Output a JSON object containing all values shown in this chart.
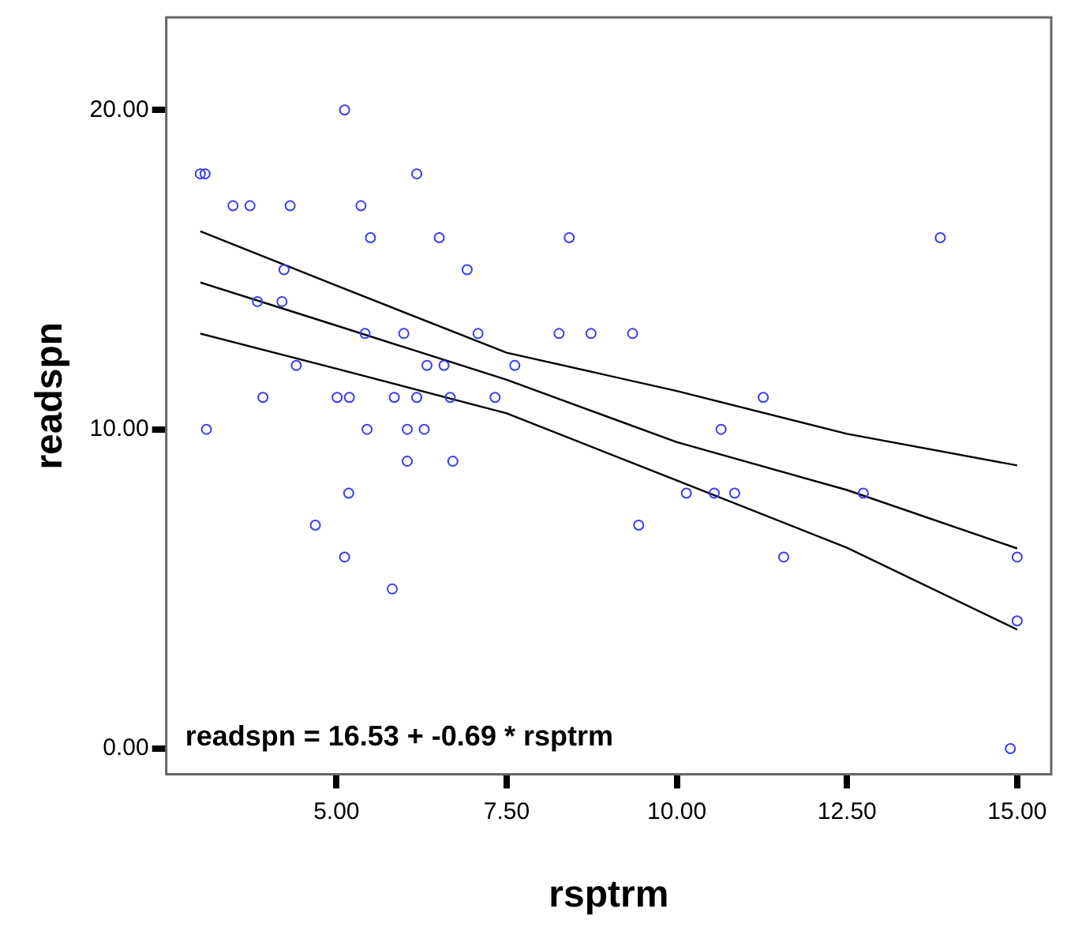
{
  "chart_data": {
    "type": "scatter",
    "xlabel": "rsptrm",
    "ylabel": "readspn",
    "xlim": [
      2.5,
      15.5
    ],
    "ylim": [
      -0.8,
      22.9
    ],
    "xticks": [
      {
        "value": 5,
        "label": "5.00"
      },
      {
        "value": 7.5,
        "label": "7.50"
      },
      {
        "value": 10,
        "label": "10.00"
      },
      {
        "value": 12.5,
        "label": "12.50"
      },
      {
        "value": 15,
        "label": "15.00"
      }
    ],
    "yticks": [
      {
        "value": 0,
        "label": "0.00"
      },
      {
        "value": 10,
        "label": "10.00"
      },
      {
        "value": 20,
        "label": "20.00"
      }
    ],
    "grid": false,
    "legend": false,
    "annotations": [
      "readspn = 16.53 + -0.69 * rsptrm"
    ],
    "series": [
      {
        "type": "scatter",
        "marker": "circle",
        "color": "#3b3bf5",
        "x": [
          5.12,
          3.0,
          3.07,
          6.18,
          3.48,
          3.73,
          4.32,
          5.36,
          5.5,
          6.51,
          8.42,
          13.87,
          4.23,
          6.92,
          3.84,
          4.2,
          5.42,
          5.99,
          7.08,
          8.27,
          8.74,
          9.35,
          4.41,
          6.33,
          6.58,
          7.62,
          3.92,
          5.01,
          5.19,
          5.85,
          6.18,
          6.67,
          7.33,
          11.27,
          3.09,
          5.45,
          6.04,
          6.29,
          10.65,
          6.04,
          6.71,
          5.18,
          10.14,
          10.55,
          10.85,
          12.74,
          4.69,
          9.44,
          5.12,
          11.57,
          15.0,
          5.82,
          15.0,
          14.9
        ],
        "values": [
          20,
          18,
          18,
          18,
          17,
          17,
          17,
          17,
          16,
          16,
          16,
          16,
          15,
          15,
          14,
          14,
          13,
          13,
          13,
          13,
          13,
          13,
          12,
          12,
          12,
          12,
          11,
          11,
          11,
          11,
          11,
          11,
          11,
          11,
          10,
          10,
          10,
          10,
          10,
          9,
          9,
          8,
          8,
          8,
          8,
          8,
          7,
          7,
          6,
          6,
          6,
          5,
          4,
          0
        ]
      },
      {
        "type": "line",
        "color": "#000000",
        "x": [
          3,
          5,
          7.5,
          10,
          12.5,
          15
        ],
        "values": [
          16.2,
          14.5,
          12.4,
          11.2,
          9.86,
          8.87
        ]
      },
      {
        "type": "line",
        "color": "#000000",
        "x": [
          3,
          5,
          7.5,
          10,
          12.5,
          15
        ],
        "values": [
          14.6,
          13.25,
          11.55,
          9.6,
          8.1,
          6.27
        ]
      },
      {
        "type": "line",
        "color": "#000000",
        "x": [
          3,
          5,
          7.5,
          10,
          12.5,
          15
        ],
        "values": [
          13.0,
          11.9,
          10.5,
          8.4,
          6.29,
          3.73
        ]
      }
    ]
  }
}
